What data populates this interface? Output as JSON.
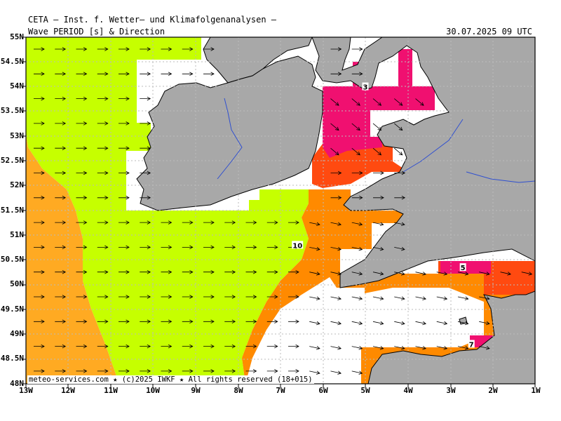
{
  "header": {
    "title": "CETA — Inst. f. Wetter— und Klimafolgenanalysen —",
    "parameter": "Wave PERIOD [s] & Direction",
    "valid_time": "30.07.2025 09 UTC"
  },
  "axes": {
    "lat_labels": [
      "55N",
      "54.5N",
      "54N",
      "53.5N",
      "53N",
      "52.5N",
      "52N",
      "51.5N",
      "51N",
      "50.5N",
      "50N",
      "49.5N",
      "49N",
      "48.5N",
      "48N"
    ],
    "lon_labels": [
      "13W",
      "12W",
      "11W",
      "10W",
      "9W",
      "8W",
      "7W",
      "6W",
      "5W",
      "4W",
      "3W",
      "2W",
      "1W"
    ]
  },
  "contour_labels": [
    {
      "text": "3",
      "lon": -5.0,
      "lat": 54.0
    },
    {
      "text": "10",
      "lon": -6.6,
      "lat": 50.8
    },
    {
      "text": "5",
      "lon": -2.7,
      "lat": 50.35
    },
    {
      "text": "7",
      "lon": -2.5,
      "lat": 48.8
    }
  ],
  "footer": {
    "credit": "meteo-services.com ★ (c)2025 IWKF ★ All rights reserved (18+015)"
  },
  "colors": {
    "land": "#a8a8a8",
    "lime": "#c6ff00",
    "orange_light": "#ffaa22",
    "orange": "#ff8a00",
    "orange_red": "#ff4a10",
    "magenta": "#f01070",
    "grid": "#bfbfbf"
  }
}
